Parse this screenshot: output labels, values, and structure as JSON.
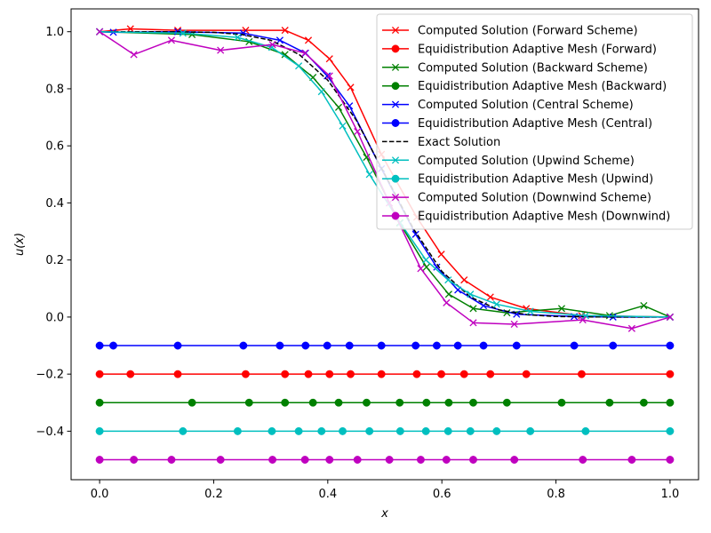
{
  "chart_data": {
    "type": "line",
    "xlabel": "x",
    "ylabel": "u(x)",
    "xlim": [
      -0.05,
      1.05
    ],
    "ylim": [
      -0.57,
      1.08
    ],
    "xticks": [
      0.0,
      0.2,
      0.4,
      0.6,
      0.8,
      1.0
    ],
    "xtick_labels": [
      "0.0",
      "0.2",
      "0.4",
      "0.6",
      "0.8",
      "1.0"
    ],
    "yticks": [
      -0.4,
      -0.2,
      0.0,
      0.2,
      0.4,
      0.6,
      0.8,
      1.0
    ],
    "ytick_labels": [
      "−0.4",
      "−0.2",
      "0.0",
      "0.2",
      "0.4",
      "0.6",
      "0.8",
      "1.0"
    ],
    "grid": false,
    "legend_position": "top-right",
    "series": [
      {
        "name": "Computed Solution (Forward Scheme)",
        "color": "#ff0000",
        "marker": "x",
        "dash": "solid",
        "x": [
          0.0,
          0.054,
          0.137,
          0.256,
          0.325,
          0.366,
          0.403,
          0.44,
          0.494,
          0.556,
          0.599,
          0.639,
          0.685,
          0.748,
          0.845,
          1.0
        ],
        "y": [
          1.0,
          1.01,
          1.005,
          1.005,
          1.005,
          0.97,
          0.905,
          0.805,
          0.57,
          0.35,
          0.22,
          0.13,
          0.07,
          0.03,
          0.005,
          0.0
        ]
      },
      {
        "name": "Equidistribution Adaptive Mesh (Forward)",
        "color": "#ff0000",
        "marker": "o",
        "dash": "solid",
        "x": [
          0.0,
          0.054,
          0.137,
          0.256,
          0.325,
          0.366,
          0.403,
          0.44,
          0.494,
          0.556,
          0.599,
          0.639,
          0.685,
          0.748,
          0.845,
          1.0
        ],
        "y": [
          -0.2,
          -0.2,
          -0.2,
          -0.2,
          -0.2,
          -0.2,
          -0.2,
          -0.2,
          -0.2,
          -0.2,
          -0.2,
          -0.2,
          -0.2,
          -0.2,
          -0.2,
          -0.2
        ]
      },
      {
        "name": "Computed Solution (Backward Scheme)",
        "color": "#008000",
        "marker": "x",
        "dash": "solid",
        "x": [
          0.0,
          0.162,
          0.262,
          0.325,
          0.374,
          0.419,
          0.468,
          0.526,
          0.573,
          0.612,
          0.655,
          0.714,
          0.81,
          0.894,
          0.954,
          1.0
        ],
        "y": [
          1.0,
          0.99,
          0.965,
          0.92,
          0.84,
          0.735,
          0.56,
          0.33,
          0.175,
          0.08,
          0.03,
          0.015,
          0.03,
          0.005,
          0.04,
          0.0
        ]
      },
      {
        "name": "Equidistribution Adaptive Mesh (Backward)",
        "color": "#008000",
        "marker": "o",
        "dash": "solid",
        "x": [
          0.0,
          0.162,
          0.262,
          0.325,
          0.374,
          0.419,
          0.468,
          0.526,
          0.573,
          0.612,
          0.655,
          0.714,
          0.81,
          0.894,
          0.954,
          1.0
        ],
        "y": [
          -0.3,
          -0.3,
          -0.3,
          -0.3,
          -0.3,
          -0.3,
          -0.3,
          -0.3,
          -0.3,
          -0.3,
          -0.3,
          -0.3,
          -0.3,
          -0.3,
          -0.3,
          -0.3
        ]
      },
      {
        "name": "Computed Solution (Central Scheme)",
        "color": "#0000ff",
        "marker": "x",
        "dash": "solid",
        "x": [
          0.0,
          0.024,
          0.137,
          0.252,
          0.316,
          0.361,
          0.399,
          0.438,
          0.494,
          0.554,
          0.591,
          0.628,
          0.673,
          0.731,
          0.832,
          0.9,
          1.0
        ],
        "y": [
          1.0,
          0.998,
          1.0,
          0.995,
          0.97,
          0.925,
          0.845,
          0.74,
          0.52,
          0.29,
          0.175,
          0.095,
          0.04,
          0.01,
          0.002,
          0.0,
          0.0
        ]
      },
      {
        "name": "Equidistribution Adaptive Mesh (Central)",
        "color": "#0000ff",
        "marker": "o",
        "dash": "solid",
        "x": [
          0.0,
          0.024,
          0.137,
          0.252,
          0.316,
          0.361,
          0.399,
          0.438,
          0.494,
          0.554,
          0.591,
          0.628,
          0.673,
          0.731,
          0.832,
          0.9,
          1.0
        ],
        "y": [
          -0.1,
          -0.1,
          -0.1,
          -0.1,
          -0.1,
          -0.1,
          -0.1,
          -0.1,
          -0.1,
          -0.1,
          -0.1,
          -0.1,
          -0.1,
          -0.1,
          -0.1,
          -0.1,
          -0.1
        ]
      },
      {
        "name": "Exact Solution",
        "color": "#000000",
        "marker": "none",
        "dash": "dashed",
        "x": [
          0.0,
          0.1,
          0.2,
          0.25,
          0.3,
          0.35,
          0.4,
          0.45,
          0.5,
          0.55,
          0.6,
          0.65,
          0.7,
          0.75,
          0.8,
          0.9,
          1.0
        ],
        "y": [
          1.0,
          1.0,
          0.998,
          0.99,
          0.97,
          0.92,
          0.83,
          0.69,
          0.5,
          0.31,
          0.16,
          0.07,
          0.025,
          0.008,
          0.002,
          0.0,
          0.0
        ]
      },
      {
        "name": "Computed Solution (Upwind Scheme)",
        "color": "#00bfbf",
        "marker": "x",
        "dash": "solid",
        "x": [
          0.0,
          0.146,
          0.242,
          0.302,
          0.349,
          0.389,
          0.426,
          0.473,
          0.527,
          0.572,
          0.611,
          0.65,
          0.696,
          0.755,
          0.852,
          1.0
        ],
        "y": [
          1.0,
          0.995,
          0.98,
          0.945,
          0.88,
          0.79,
          0.67,
          0.5,
          0.33,
          0.2,
          0.13,
          0.08,
          0.045,
          0.02,
          0.005,
          0.0
        ]
      },
      {
        "name": "Equidistribution Adaptive Mesh (Upwind)",
        "color": "#00bfbf",
        "marker": "o",
        "dash": "solid",
        "x": [
          0.0,
          0.146,
          0.242,
          0.302,
          0.349,
          0.389,
          0.426,
          0.473,
          0.527,
          0.572,
          0.611,
          0.65,
          0.696,
          0.755,
          0.852,
          1.0
        ],
        "y": [
          -0.4,
          -0.4,
          -0.4,
          -0.4,
          -0.4,
          -0.4,
          -0.4,
          -0.4,
          -0.4,
          -0.4,
          -0.4,
          -0.4,
          -0.4,
          -0.4,
          -0.4,
          -0.4
        ]
      },
      {
        "name": "Computed Solution (Downwind Scheme)",
        "color": "#bf00bf",
        "marker": "x",
        "dash": "solid",
        "x": [
          0.0,
          0.06,
          0.126,
          0.212,
          0.303,
          0.36,
          0.403,
          0.452,
          0.508,
          0.563,
          0.608,
          0.655,
          0.727,
          0.847,
          0.933,
          1.0
        ],
        "y": [
          1.0,
          0.92,
          0.97,
          0.935,
          0.955,
          0.925,
          0.845,
          0.65,
          0.4,
          0.17,
          0.05,
          -0.02,
          -0.025,
          -0.01,
          -0.04,
          0.0
        ]
      },
      {
        "name": "Equidistribution Adaptive Mesh (Downwind)",
        "color": "#bf00bf",
        "marker": "o",
        "dash": "solid",
        "x": [
          0.0,
          0.06,
          0.126,
          0.212,
          0.303,
          0.36,
          0.403,
          0.452,
          0.508,
          0.563,
          0.608,
          0.655,
          0.727,
          0.847,
          0.933,
          1.0
        ],
        "y": [
          -0.5,
          -0.5,
          -0.5,
          -0.5,
          -0.5,
          -0.5,
          -0.5,
          -0.5,
          -0.5,
          -0.5,
          -0.5,
          -0.5,
          -0.5,
          -0.5,
          -0.5,
          -0.5
        ]
      }
    ]
  }
}
